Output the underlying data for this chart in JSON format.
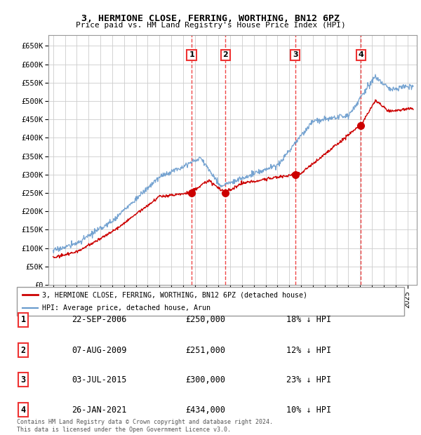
{
  "title1": "3, HERMIONE CLOSE, FERRING, WORTHING, BN12 6PZ",
  "title2": "Price paid vs. HM Land Registry's House Price Index (HPI)",
  "ylim": [
    0,
    680000
  ],
  "yticks": [
    0,
    50000,
    100000,
    150000,
    200000,
    250000,
    300000,
    350000,
    400000,
    450000,
    500000,
    550000,
    600000,
    650000
  ],
  "ytick_labels": [
    "£0",
    "£50K",
    "£100K",
    "£150K",
    "£200K",
    "£250K",
    "£300K",
    "£350K",
    "£400K",
    "£450K",
    "£500K",
    "£550K",
    "£600K",
    "£650K"
  ],
  "hpi_color": "#6699cc",
  "price_color": "#cc0000",
  "vline_color": "#ee3333",
  "grid_color": "#cccccc",
  "bg_color": "#ffffff",
  "shade_color": "#dce8f5",
  "sales": [
    {
      "num": 1,
      "date_x": 2006.73,
      "price": 250000,
      "date_str": "22-SEP-2006",
      "pct": "18%",
      "dir": "↓"
    },
    {
      "num": 2,
      "date_x": 2009.6,
      "price": 251000,
      "date_str": "07-AUG-2009",
      "pct": "12%",
      "dir": "↓"
    },
    {
      "num": 3,
      "date_x": 2015.5,
      "price": 300000,
      "date_str": "03-JUL-2015",
      "pct": "23%",
      "dir": "↓"
    },
    {
      "num": 4,
      "date_x": 2021.07,
      "price": 434000,
      "date_str": "26-JAN-2021",
      "pct": "10%",
      "dir": "↓"
    }
  ],
  "legend_line1": "3, HERMIONE CLOSE, FERRING, WORTHING, BN12 6PZ (detached house)",
  "legend_line2": "HPI: Average price, detached house, Arun",
  "footnote": "Contains HM Land Registry data © Crown copyright and database right 2024.\nThis data is licensed under the Open Government Licence v3.0.",
  "table_rows": [
    [
      "1",
      "22-SEP-2006",
      "£250,000",
      "18% ↓ HPI"
    ],
    [
      "2",
      "07-AUG-2009",
      "£251,000",
      "12% ↓ HPI"
    ],
    [
      "3",
      "03-JUL-2015",
      "£300,000",
      "23% ↓ HPI"
    ],
    [
      "4",
      "26-JAN-2021",
      "£434,000",
      "10% ↓ HPI"
    ]
  ],
  "xlim_start": 1994.6,
  "xlim_end": 2025.8
}
